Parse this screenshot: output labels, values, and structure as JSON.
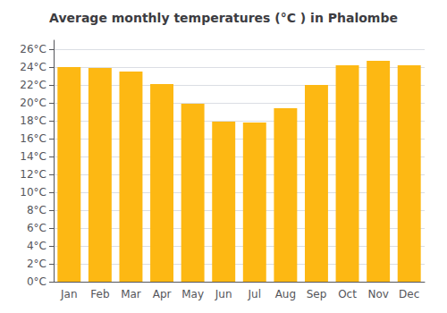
{
  "chart_data": {
    "type": "bar",
    "title": "Average monthly temperatures (°C ) in Phalombe",
    "categories": [
      "Jan",
      "Feb",
      "Mar",
      "Apr",
      "May",
      "Jun",
      "Jul",
      "Aug",
      "Sep",
      "Oct",
      "Nov",
      "Dec"
    ],
    "values": [
      24.0,
      23.9,
      23.5,
      22.1,
      19.9,
      17.9,
      17.8,
      19.4,
      22.0,
      24.2,
      24.7,
      24.2
    ],
    "color": "#FDB813",
    "ylim": [
      0,
      27
    ],
    "yticks": [
      {
        "value": 0,
        "label": "0°C"
      },
      {
        "value": 2,
        "label": "2°C"
      },
      {
        "value": 4,
        "label": "4°C"
      },
      {
        "value": 6,
        "label": "6°C"
      },
      {
        "value": 8,
        "label": "8°C"
      },
      {
        "value": 10,
        "label": "10°C"
      },
      {
        "value": 12,
        "label": "12°C"
      },
      {
        "value": 14,
        "label": "14°C"
      },
      {
        "value": 16,
        "label": "16°C"
      },
      {
        "value": 18,
        "label": "18°C"
      },
      {
        "value": 20,
        "label": "20°C"
      },
      {
        "value": 22,
        "label": "22°C"
      },
      {
        "value": 24,
        "label": "24°C"
      },
      {
        "value": 26,
        "label": "26°C"
      }
    ],
    "grid": true
  }
}
